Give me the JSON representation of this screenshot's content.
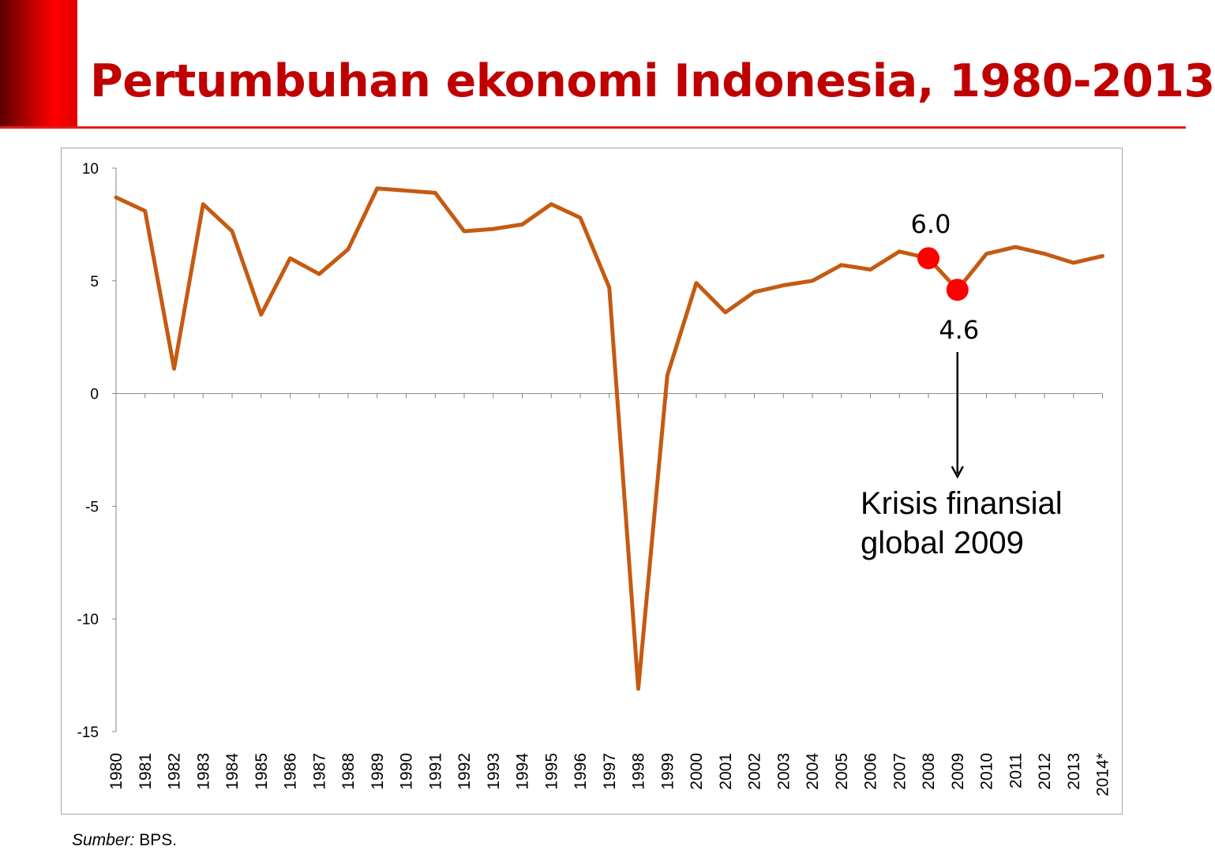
{
  "title": "Pertumbuhan ekonomi Indonesia, 1980-2013",
  "source": {
    "label": "Sumber:",
    "text": "BPS."
  },
  "colors": {
    "accent": "#c00000",
    "line": "#c55a11",
    "marker": "#ff0000",
    "axis": "#868686"
  },
  "chart_data": {
    "type": "line",
    "title": "",
    "xlabel": "",
    "ylabel": "",
    "ylim": [
      -15,
      10
    ],
    "yticks": [
      10,
      5,
      0,
      -5,
      -10,
      -15
    ],
    "grid": false,
    "legend": "none",
    "categories": [
      "1980",
      "1981",
      "1982",
      "1983",
      "1984",
      "1985",
      "1986",
      "1987",
      "1988",
      "1989",
      "1990",
      "1991",
      "1992",
      "1993",
      "1994",
      "1995",
      "1996",
      "1997",
      "1998",
      "1999",
      "2000",
      "2001",
      "2002",
      "2003",
      "2004",
      "2005",
      "2006",
      "2007",
      "2008",
      "2009",
      "2010",
      "2011",
      "2012",
      "2013",
      "2014*"
    ],
    "series": [
      {
        "name": "",
        "values": [
          8.7,
          8.1,
          1.1,
          8.4,
          7.2,
          3.5,
          6.0,
          5.3,
          6.4,
          9.1,
          9.0,
          8.9,
          7.2,
          7.3,
          7.5,
          8.4,
          7.8,
          4.7,
          -13.1,
          0.8,
          4.9,
          3.6,
          4.5,
          4.8,
          5.0,
          5.7,
          5.5,
          6.3,
          6.0,
          4.6,
          6.2,
          6.5,
          6.2,
          5.8,
          6.1
        ]
      }
    ],
    "highlights": [
      {
        "category": "2008",
        "value": 6.0,
        "label": "6.0"
      },
      {
        "category": "2009",
        "value": 4.6,
        "label": "4.6"
      }
    ],
    "annotation": {
      "category": "2009",
      "lines": [
        "Krisis finansial",
        "global 2009"
      ]
    }
  }
}
